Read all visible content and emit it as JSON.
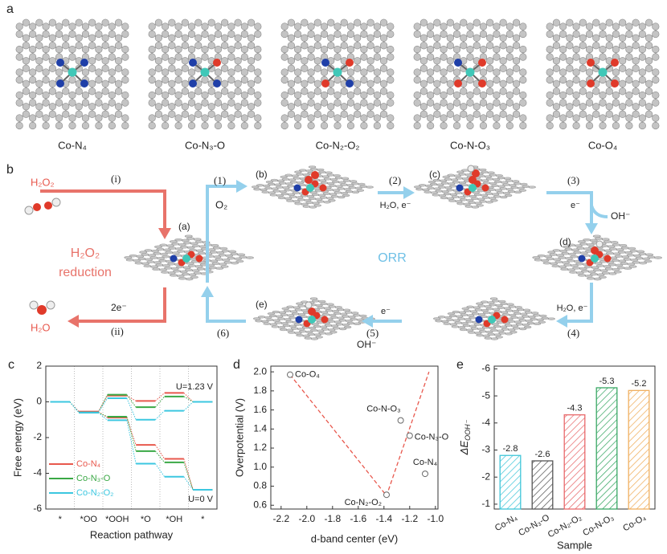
{
  "panel_a": {
    "letter": "a",
    "structures": [
      "Co-N₄",
      "Co-N₃-O",
      "Co-N₂-O₂",
      "Co-N-O₃",
      "Co-O₄"
    ]
  },
  "panel_b": {
    "letter": "b",
    "h2o2": "H₂O₂",
    "step_i": "(i)",
    "label_a": "(a)",
    "reduction_1": "H₂O₂",
    "reduction_2": "reduction",
    "two_e": "2e⁻",
    "step_ii": "(ii)",
    "h2o": "H₂O",
    "step_1": "(1)",
    "o2": "O₂",
    "label_b": "(b)",
    "step_2": "(2)",
    "step_2_reagent": "H₂O, e⁻",
    "label_c": "(c)",
    "step_3": "(3)",
    "step_3_reagent": "e⁻",
    "step_3_product": "OH⁻",
    "label_d": "(d)",
    "orr": "ORR",
    "step_4_reagent": "H₂O, e⁻",
    "step_4": "(4)",
    "step_5": "(5)",
    "step_5_reagent": "e⁻",
    "step_5_product": "OH⁻",
    "label_e": "(e)",
    "step_6": "(6)"
  },
  "chart_data": [
    {
      "type": "energy_diagram",
      "panel": "c",
      "ylabel": "Free energy (eV)",
      "xlabel": "Reaction pathway",
      "categories": [
        "*",
        "*OO",
        "*OOH",
        "*O",
        "*OH",
        "*"
      ],
      "ylim": [
        -6,
        2
      ],
      "yticks": [
        -6,
        -4,
        -2,
        0,
        2
      ],
      "annotations": [
        "U=1.23 V",
        "U=0 V"
      ],
      "series": [
        {
          "name": "Co-N₄",
          "color": "#e8584d",
          "values": [
            0,
            -0.55,
            0.35,
            0.05,
            0.5,
            0
          ],
          "values_u0": [
            0,
            -0.55,
            -0.88,
            -2.41,
            -3.19,
            -4.92
          ]
        },
        {
          "name": "Co-N₃-O",
          "color": "#3aa845",
          "values": [
            0,
            -0.6,
            0.4,
            -0.3,
            0.3,
            0
          ],
          "values_u0": [
            0,
            -0.6,
            -0.83,
            -2.76,
            -3.39,
            -4.92
          ]
        },
        {
          "name": "Co-N₂-O₂",
          "color": "#3cc7e0",
          "values": [
            0,
            -0.6,
            0.2,
            -1.0,
            -0.5,
            0
          ],
          "values_u0": [
            0,
            -0.6,
            -1.03,
            -3.46,
            -4.19,
            -4.92
          ]
        }
      ]
    },
    {
      "type": "scatter",
      "panel": "d",
      "xlabel": "d-band center (eV)",
      "ylabel": "Overpotential (V)",
      "xlim": [
        -2.28,
        -0.98
      ],
      "ylim": [
        0.56,
        2.06
      ],
      "xticks": [
        -2.2,
        {
          "value": -2,
          "label": "-2.0"
        },
        -1.8,
        -1.6,
        -1.4,
        -1.2,
        {
          "value": -1,
          "label": "-1.0"
        }
      ],
      "yticks": [
        0.6,
        0.8,
        {
          "value": 1,
          "label": "1.0"
        },
        1.2,
        1.4,
        1.6,
        1.8,
        {
          "value": 2,
          "label": "2.0"
        }
      ],
      "labels": [
        "Co-O₄",
        "Co-N-O₃",
        "Co-N₃-O",
        "Co-N₄",
        "Co-N₂-O₂"
      ],
      "x": [
        -2.13,
        -1.27,
        -1.2,
        -1.08,
        -1.38
      ],
      "y": [
        1.97,
        1.49,
        1.33,
        0.93,
        0.71
      ],
      "trend": {
        "color": "#e8584d",
        "x": [
          -2.13,
          -1.38,
          -1.05
        ],
        "y": [
          1.97,
          0.7,
          2.0
        ]
      }
    },
    {
      "type": "bar",
      "panel": "e",
      "xlabel": "Sample",
      "ylabel": {
        "main": "ΔE",
        "sub": "OOH⁻"
      },
      "categories": [
        "Co-N₄",
        "Co-N₃-O",
        "Co-N₂-O₂",
        "Co-N-O₃",
        "Co-O₄"
      ],
      "values": [
        -2.8,
        -2.6,
        -4.3,
        -5.3,
        -5.2
      ],
      "colors": [
        "#3fc6d9",
        "#555555",
        "#e8696b",
        "#3aa865",
        "#f0b060"
      ],
      "ylim": [
        -0.82,
        -6.1
      ],
      "yticks": [
        -1,
        -2,
        -3,
        -4,
        -5,
        -6
      ]
    }
  ]
}
